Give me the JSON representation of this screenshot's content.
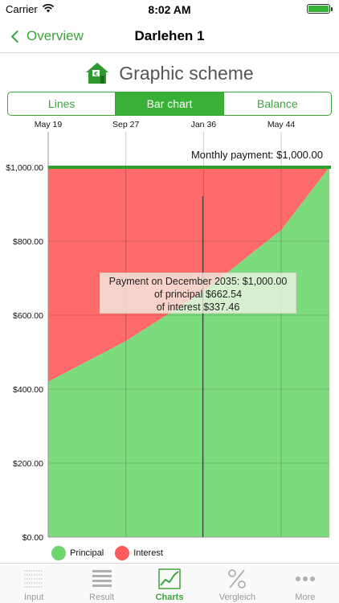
{
  "status": {
    "carrier": "Carrier",
    "time": "8:02 AM"
  },
  "nav": {
    "back_label": "Overview",
    "title": "Darlehen 1"
  },
  "heading": {
    "title": "Graphic scheme",
    "icon": "house-euro-icon"
  },
  "segments": [
    {
      "label": "Lines",
      "active": false
    },
    {
      "label": "Bar chart",
      "active": true
    },
    {
      "label": "Balance",
      "active": false
    }
  ],
  "chart_data": {
    "type": "area",
    "x_ticks": [
      "May 19",
      "Sep 27",
      "Jan 36",
      "May 44"
    ],
    "y_ticks": [
      "$1,000.00",
      "$800.00",
      "$600.00",
      "$400.00",
      "$200.00",
      "$0.00"
    ],
    "y_tick_values": [
      1000,
      800,
      600,
      400,
      200,
      0
    ],
    "ylim": [
      0,
      1000
    ],
    "x_range": [
      "May 19",
      "Jul 49"
    ],
    "monthly_payment_label": "Monthly payment: $1,000.00",
    "payment_line": 1000,
    "series": [
      {
        "name": "Principal",
        "color": "#7cdb7c",
        "x": [
          "May 19",
          "Sep 27",
          "Dec 35",
          "May 44",
          "Jul 49"
        ],
        "values": [
          420,
          530,
          662.54,
          830,
          1000
        ]
      },
      {
        "name": "Interest",
        "color": "#ff6b6b",
        "x": [
          "May 19",
          "Sep 27",
          "Dec 35",
          "May 44",
          "Jul 49"
        ],
        "values": [
          580,
          470,
          337.46,
          170,
          0
        ]
      }
    ],
    "cursor_x": "Dec 35",
    "tooltip": {
      "line1": "Payment on December 2035: $1,000.00",
      "line2": "of principal $662.54",
      "line3": "of interest $337.46"
    },
    "legend": [
      {
        "label": "Principal",
        "color": "#7cdb7c"
      },
      {
        "label": "Interest",
        "color": "#ff6b6b"
      }
    ],
    "grid": true
  },
  "tabs": [
    {
      "label": "Input",
      "icon": "input-grid-icon",
      "active": false
    },
    {
      "label": "Result",
      "icon": "result-list-icon",
      "active": false
    },
    {
      "label": "Charts",
      "icon": "charts-icon",
      "active": true
    },
    {
      "label": "Vergleich",
      "icon": "percent-icon",
      "active": false
    },
    {
      "label": "More",
      "icon": "more-dots-icon",
      "active": false
    }
  ]
}
